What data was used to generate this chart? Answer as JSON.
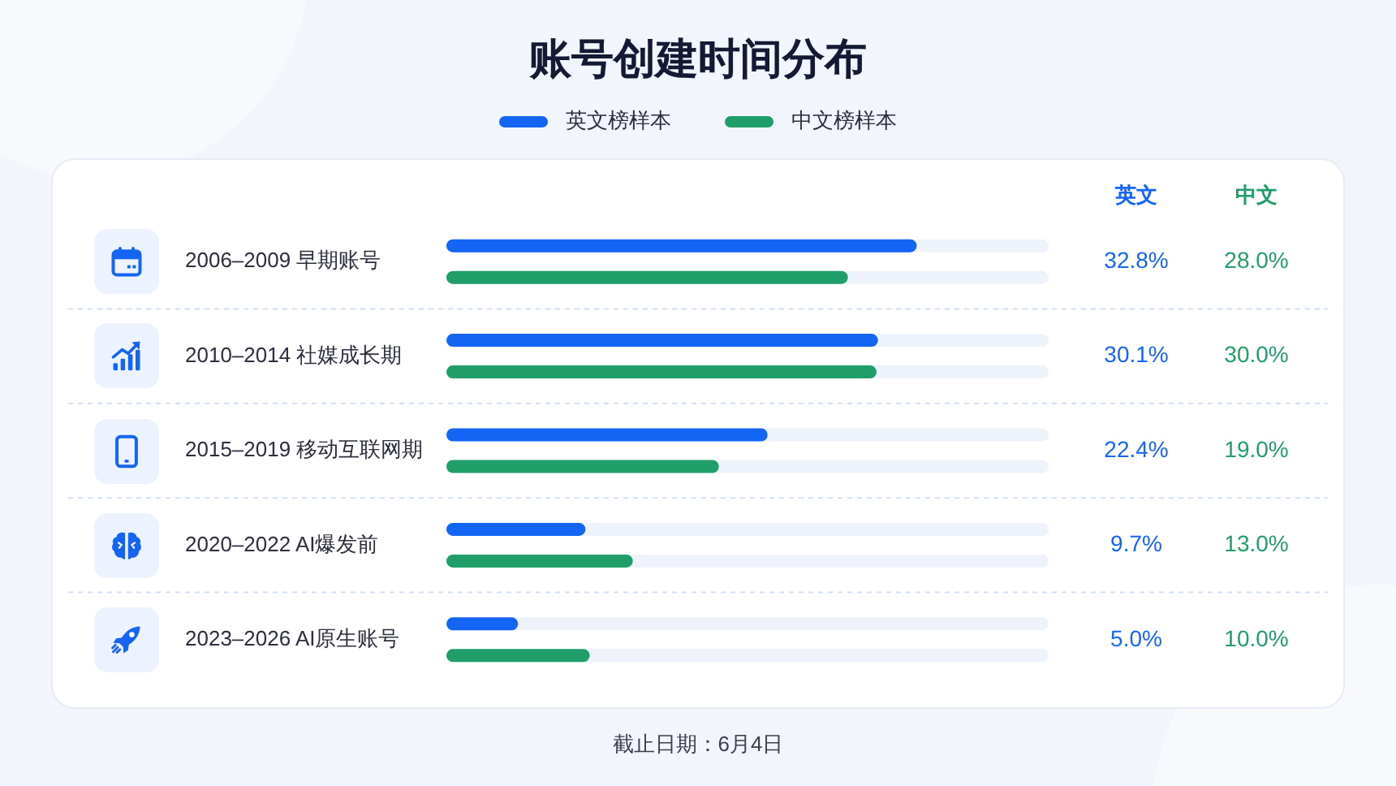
{
  "chart_data": {
    "type": "bar",
    "orientation": "horizontal",
    "title": "账号创建时间分布",
    "categories": [
      "2006–2009 早期账号",
      "2010–2014 社媒成长期",
      "2015–2019 移动互联网期",
      "2020–2022 AI爆发前",
      "2023–2026 AI原生账号"
    ],
    "series": [
      {
        "name": "英文榜样本",
        "color": "#1565f5",
        "values": [
          32.8,
          30.1,
          22.4,
          9.7,
          5.0
        ],
        "value_labels": [
          "32.8%",
          "30.1%",
          "22.4%",
          "9.7%",
          "5.0%"
        ]
      },
      {
        "name": "中文榜样本",
        "color": "#1f9e6a",
        "values": [
          28.0,
          30.0,
          19.0,
          13.0,
          10.0
        ],
        "value_labels": [
          "28.0%",
          "30.0%",
          "19.0%",
          "13.0%",
          "10.0%"
        ]
      }
    ],
    "xlim": [
      0,
      42
    ],
    "tick_labels": "y",
    "grid": "y",
    "legend": "top",
    "annotations": [
      "英文",
      "中文",
      "截止日期：6月4日"
    ]
  }
}
